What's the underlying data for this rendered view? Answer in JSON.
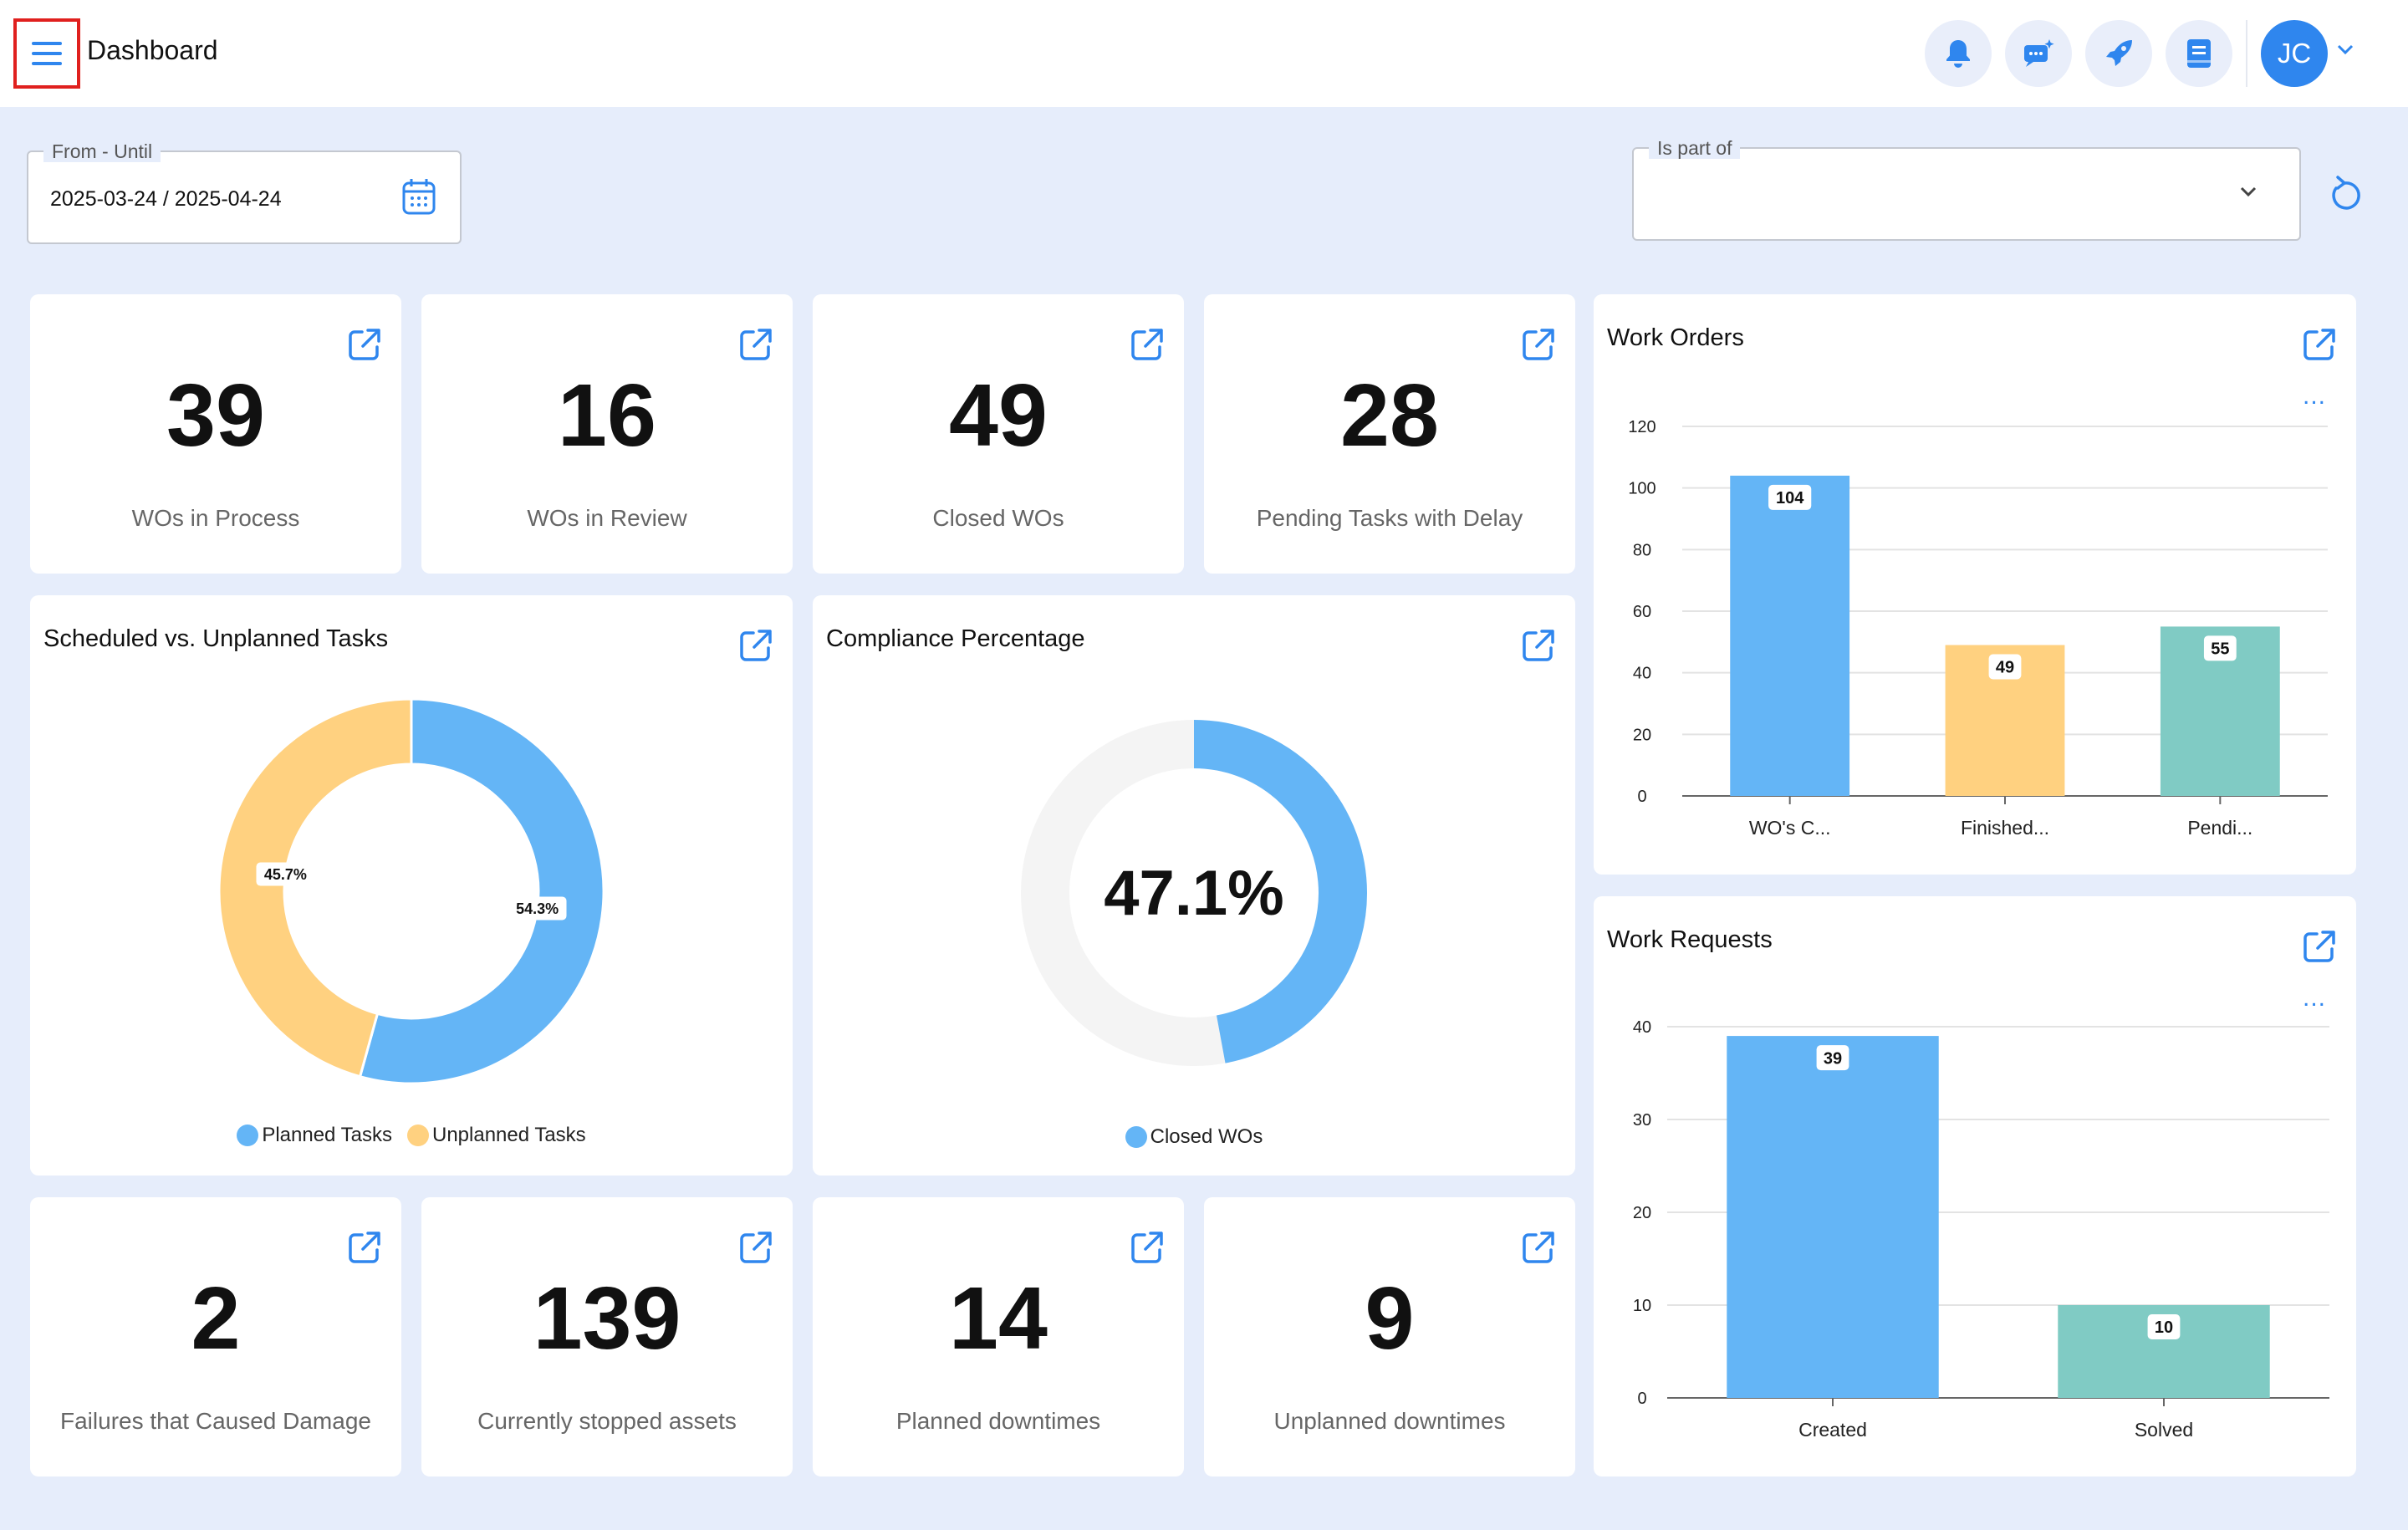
{
  "header": {
    "title": "Dashboard",
    "avatar_initials": "JC"
  },
  "filters": {
    "date_range": {
      "label": "From - Until",
      "value": "2025-03-24 / 2025-04-24"
    },
    "is_part_of": {
      "label": "Is part of",
      "value": ""
    }
  },
  "kpis_top": [
    {
      "value": "39",
      "label": "WOs in Process"
    },
    {
      "value": "16",
      "label": "WOs in Review"
    },
    {
      "value": "49",
      "label": "Closed WOs"
    },
    {
      "value": "28",
      "label": "Pending Tasks with Delay"
    }
  ],
  "kpis_bottom": [
    {
      "value": "2",
      "label": "Failures that Caused Damage"
    },
    {
      "value": "139",
      "label": "Currently stopped assets"
    },
    {
      "value": "14",
      "label": "Planned downtimes"
    },
    {
      "value": "9",
      "label": "Unplanned downtimes"
    }
  ],
  "colors": {
    "accent": "#2f86ee",
    "blue": "#64b5f6",
    "yellow": "#ffd180",
    "teal": "#80cbc4",
    "track": "#f4f4f4"
  },
  "chart_data": [
    {
      "type": "pie",
      "title": "Scheduled vs. Unplanned Tasks",
      "categories": [
        "Planned Tasks",
        "Unplanned Tasks"
      ],
      "values": [
        54.3,
        45.7
      ],
      "labels": [
        "54.3%",
        "45.7%"
      ],
      "colors": [
        "#64b5f6",
        "#ffd180"
      ],
      "legend": "bottom"
    },
    {
      "type": "pie",
      "title": "Compliance Percentage",
      "categories": [
        "Closed WOs"
      ],
      "values": [
        47.1
      ],
      "center_label": "47.1%",
      "colors": [
        "#64b5f6"
      ],
      "legend": "bottom"
    },
    {
      "type": "bar",
      "title": "Work Orders",
      "categories": [
        "WO's C...",
        "Finished...",
        "Pendi..."
      ],
      "values": [
        104,
        49,
        55
      ],
      "colors": [
        "#64b5f6",
        "#ffd180",
        "#80cbc4"
      ],
      "yticks": [
        "0",
        "20",
        "40",
        "60",
        "80",
        "100",
        "120"
      ],
      "ylim": [
        0,
        120
      ],
      "grid": true
    },
    {
      "type": "bar",
      "title": "Work Requests",
      "categories": [
        "Created",
        "Solved"
      ],
      "values": [
        39,
        10
      ],
      "colors": [
        "#64b5f6",
        "#80cbc4"
      ],
      "yticks": [
        "0",
        "10",
        "20",
        "30",
        "40"
      ],
      "ylim": [
        0,
        40
      ],
      "grid": true
    }
  ],
  "icons": {
    "menu": "menu-icon",
    "bell": "bell-icon",
    "chat": "chat-icon",
    "rocket": "rocket-icon",
    "notes": "notes-icon",
    "calendar": "calendar-icon",
    "refresh": "refresh-icon",
    "external": "external-link-icon"
  }
}
